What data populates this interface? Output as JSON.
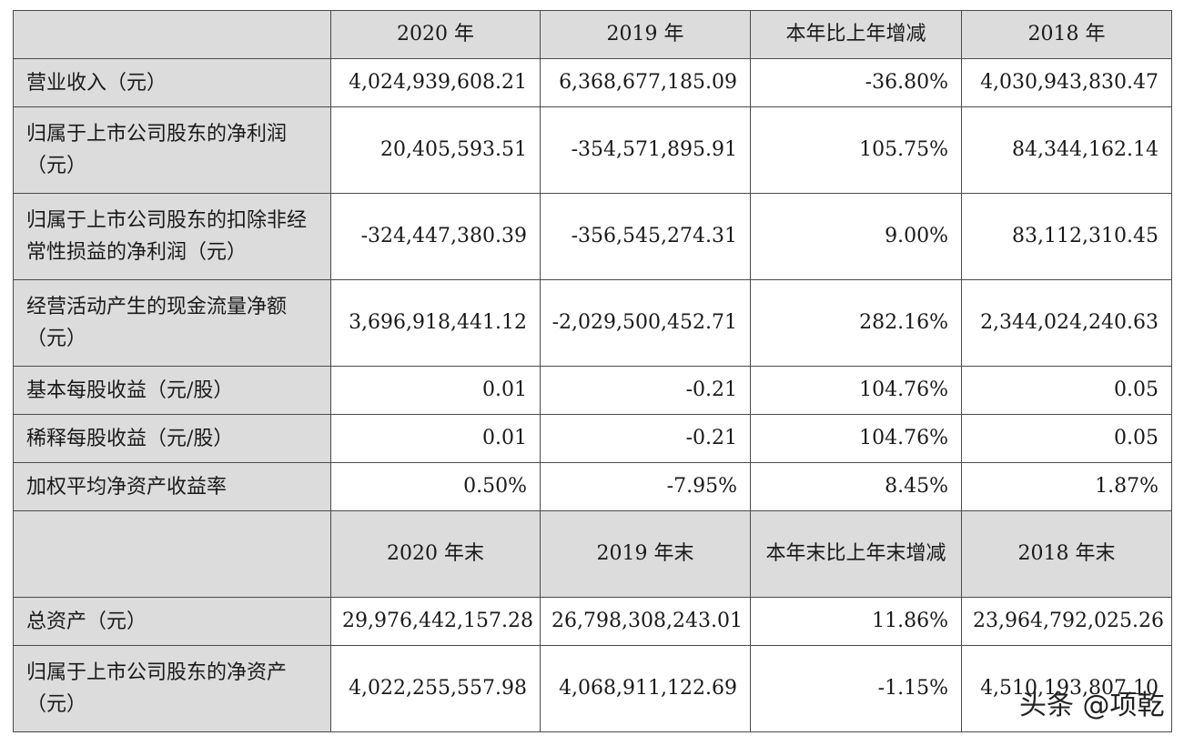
{
  "header1": {
    "blank": "",
    "cols": [
      "2020 年",
      "2019 年",
      "本年比上年增减",
      "2018 年"
    ]
  },
  "rows1": [
    {
      "label": "营业收入（元）",
      "values": [
        "4,024,939,608.21",
        "6,368,677,185.09",
        "-36.80%",
        "4,030,943,830.47"
      ]
    },
    {
      "label": "归属于上市公司股东的净利润（元）",
      "values": [
        "20,405,593.51",
        "-354,571,895.91",
        "105.75%",
        "84,344,162.14"
      ]
    },
    {
      "label": "归属于上市公司股东的扣除非经常性损益的净利润（元）",
      "values": [
        "-324,447,380.39",
        "-356,545,274.31",
        "9.00%",
        "83,112,310.45"
      ]
    },
    {
      "label": "经营活动产生的现金流量净额（元）",
      "values": [
        "3,696,918,441.12",
        "-2,029,500,452.71",
        "282.16%",
        "2,344,024,240.63"
      ]
    },
    {
      "label": "基本每股收益（元/股）",
      "values": [
        "0.01",
        "-0.21",
        "104.76%",
        "0.05"
      ]
    },
    {
      "label": "稀释每股收益（元/股）",
      "values": [
        "0.01",
        "-0.21",
        "104.76%",
        "0.05"
      ]
    },
    {
      "label": "加权平均净资产收益率",
      "values": [
        "0.50%",
        "-7.95%",
        "8.45%",
        "1.87%"
      ]
    }
  ],
  "header2": {
    "blank": "",
    "cols": [
      "2020 年末",
      "2019 年末",
      "本年末比上年末增减",
      "2018 年末"
    ]
  },
  "rows2": [
    {
      "label": "总资产（元）",
      "values": [
        "29,976,442,157.28",
        "26,798,308,243.01",
        "11.86%",
        "23,964,792,025.26"
      ]
    },
    {
      "label": "归属于上市公司股东的净资产（元）",
      "values": [
        "4,022,255,557.98",
        "4,068,911,122.69",
        "-1.15%",
        "4,510,193,807.10"
      ]
    }
  ],
  "watermark": "头条 @项乾"
}
